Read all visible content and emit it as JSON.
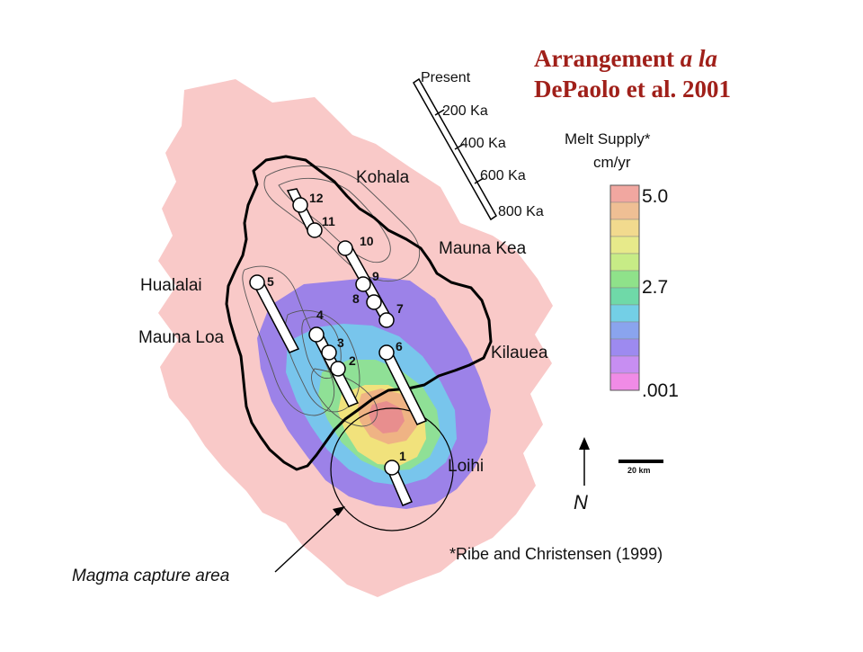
{
  "title": {
    "line1_a": "Arrangement ",
    "line1_b": "a la",
    "line2": "DePaolo et al. 2001"
  },
  "volcano_labels": {
    "kohala": "Kohala",
    "mauna_kea": "Mauna Kea",
    "hualalai": "Hualalai",
    "mauna_loa": "Mauna Loa",
    "kilauea": "Kilauea",
    "loihi": "Loihi"
  },
  "sample_sites": [
    {
      "id": "1",
      "label": "1"
    },
    {
      "id": "2",
      "label": "2"
    },
    {
      "id": "3",
      "label": "3"
    },
    {
      "id": "4",
      "label": "4"
    },
    {
      "id": "5",
      "label": "5"
    },
    {
      "id": "6",
      "label": "6"
    },
    {
      "id": "7",
      "label": "7"
    },
    {
      "id": "8",
      "label": "8"
    },
    {
      "id": "9",
      "label": "9"
    },
    {
      "id": "10",
      "label": "10"
    },
    {
      "id": "11",
      "label": "11"
    },
    {
      "id": "12",
      "label": "12"
    }
  ],
  "age_scale": {
    "labels": [
      "Present",
      "200 Ka",
      "400 Ka",
      "600 Ka",
      "800 Ka"
    ]
  },
  "legend": {
    "title_line1": "Melt Supply*",
    "title_line2": "cm/yr",
    "tick_max": "5.0",
    "tick_mid": "2.7",
    "tick_min": ".001",
    "colors": [
      "#f1a7a0",
      "#efbf94",
      "#f2da8e",
      "#e7ea8a",
      "#c7ec86",
      "#8fe28a",
      "#6fd9a8",
      "#73cfe6",
      "#8aa4ee",
      "#9d8af0",
      "#c78ef2",
      "#f08be6"
    ]
  },
  "scale_bar": {
    "label": "20 km"
  },
  "north": {
    "label": "N"
  },
  "reference": "*Ribe and Christensen (1999)",
  "caption": "Magma capture area"
}
